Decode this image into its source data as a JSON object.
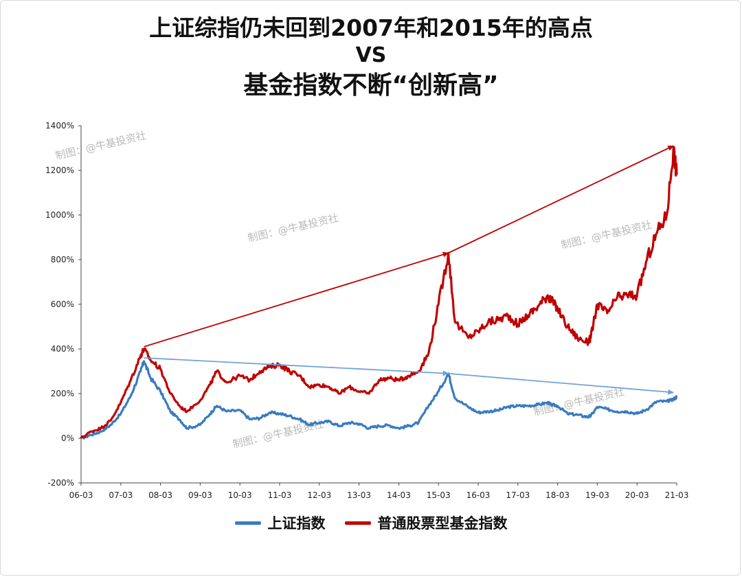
{
  "title": {
    "line1": "上证综指仍未回到2007年和2015年的高点",
    "line2": "VS",
    "line3": "基金指数不断“创新高”"
  },
  "watermark": "制图：@牛基投资社",
  "colors": {
    "shanghai": "#3a7bbf",
    "fund": "#c00000",
    "shanghai_arrow": "#6fa3dc",
    "fund_arrow": "#c00000"
  },
  "chart_data": {
    "type": "line",
    "x_ticks": [
      "06-03",
      "07-03",
      "08-03",
      "09-03",
      "10-03",
      "11-03",
      "12-03",
      "13-03",
      "14-03",
      "15-03",
      "16-03",
      "17-03",
      "18-03",
      "19-03",
      "20-03",
      "21-03"
    ],
    "y_ticks": [
      "-200%",
      "0%",
      "200%",
      "400%",
      "600%",
      "800%",
      "1000%",
      "1200%",
      "1400%"
    ],
    "ylim": [
      -200,
      1400
    ],
    "xlim": [
      "06-03",
      "21-03"
    ],
    "grid": false,
    "legend_position": "bottom",
    "series": [
      {
        "name": "上证指数",
        "key": "shanghai",
        "x": [
          "06-03",
          "06-06",
          "06-09",
          "06-12",
          "07-03",
          "07-06",
          "07-09",
          "07-10",
          "07-12",
          "08-03",
          "08-06",
          "08-09",
          "08-11",
          "09-03",
          "09-06",
          "09-08",
          "09-11",
          "10-03",
          "10-06",
          "10-09",
          "10-12",
          "11-03",
          "11-06",
          "11-09",
          "11-12",
          "12-03",
          "12-06",
          "12-09",
          "12-12",
          "13-03",
          "13-06",
          "13-09",
          "13-12",
          "14-03",
          "14-06",
          "14-09",
          "14-12",
          "15-03",
          "15-06",
          "15-08",
          "15-12",
          "16-03",
          "16-06",
          "16-09",
          "16-12",
          "17-03",
          "17-06",
          "17-09",
          "17-12",
          "18-01",
          "18-03",
          "18-06",
          "18-09",
          "18-12",
          "19-01",
          "19-03",
          "19-06",
          "19-09",
          "19-12",
          "20-03",
          "20-06",
          "20-09",
          "20-12",
          "21-02",
          "21-03"
        ],
        "values": [
          0,
          15,
          30,
          60,
          110,
          190,
          300,
          345,
          270,
          210,
          120,
          80,
          45,
          60,
          110,
          145,
          120,
          125,
          85,
          90,
          115,
          110,
          100,
          85,
          60,
          70,
          75,
          55,
          70,
          65,
          45,
          55,
          58,
          45,
          55,
          70,
          145,
          210,
          290,
          180,
          140,
          115,
          120,
          125,
          140,
          145,
          145,
          150,
          160,
          150,
          145,
          110,
          105,
          95,
          100,
          140,
          130,
          120,
          120,
          110,
          130,
          165,
          165,
          175,
          185
        ]
      },
      {
        "name": "普通股票型基金指数",
        "key": "fund",
        "x": [
          "06-03",
          "06-06",
          "06-09",
          "06-12",
          "07-03",
          "07-06",
          "07-09",
          "07-10",
          "07-12",
          "08-03",
          "08-06",
          "08-09",
          "08-11",
          "09-03",
          "09-06",
          "09-08",
          "09-11",
          "10-03",
          "10-06",
          "10-09",
          "10-12",
          "11-03",
          "11-06",
          "11-09",
          "11-12",
          "12-03",
          "12-06",
          "12-09",
          "12-12",
          "13-03",
          "13-06",
          "13-09",
          "13-12",
          "14-03",
          "14-06",
          "14-09",
          "14-12",
          "15-03",
          "15-06",
          "15-08",
          "15-12",
          "16-03",
          "16-06",
          "16-09",
          "16-12",
          "17-03",
          "17-06",
          "17-09",
          "17-12",
          "18-01",
          "18-03",
          "18-06",
          "18-09",
          "18-12",
          "19-01",
          "19-03",
          "19-06",
          "19-09",
          "19-12",
          "20-03",
          "20-06",
          "20-09",
          "20-12",
          "21-02",
          "21-03"
        ],
        "values": [
          0,
          30,
          45,
          80,
          160,
          260,
          370,
          400,
          350,
          310,
          200,
          140,
          120,
          170,
          240,
          300,
          250,
          280,
          260,
          300,
          320,
          330,
          300,
          280,
          230,
          240,
          230,
          200,
          230,
          210,
          200,
          260,
          270,
          260,
          280,
          300,
          380,
          600,
          830,
          520,
          450,
          480,
          520,
          530,
          550,
          510,
          550,
          590,
          640,
          620,
          580,
          500,
          450,
          430,
          450,
          600,
          560,
          630,
          640,
          640,
          800,
          920,
          1000,
          1300,
          1180
        ]
      }
    ],
    "trend_arrows": [
      {
        "series": "fund",
        "from": {
          "x": "07-10",
          "y": 410
        },
        "to": {
          "x": "15-06",
          "y": 830
        }
      },
      {
        "series": "fund",
        "from": {
          "x": "15-06",
          "y": 830
        },
        "to": {
          "x": "21-02",
          "y": 1310
        }
      },
      {
        "series": "shanghai",
        "from": {
          "x": "07-10",
          "y": 360
        },
        "to": {
          "x": "15-06",
          "y": 290
        }
      },
      {
        "series": "shanghai",
        "from": {
          "x": "15-06",
          "y": 290
        },
        "to": {
          "x": "21-02",
          "y": 205
        }
      }
    ]
  }
}
